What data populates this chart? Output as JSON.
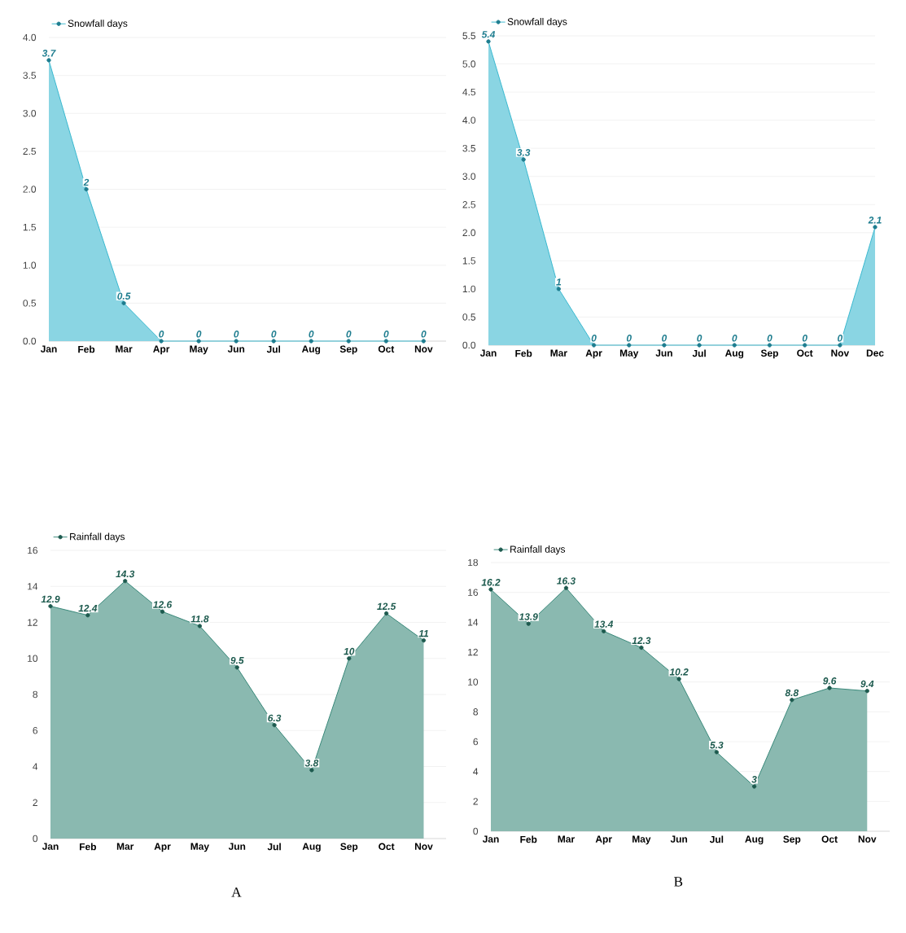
{
  "chart_data": [
    {
      "type": "area",
      "categories": [
        "Jan",
        "Feb",
        "Mar",
        "Apr",
        "May",
        "Jun",
        "Jul",
        "Aug",
        "Sep",
        "Oct",
        "Nov"
      ],
      "series": [
        {
          "name": "Snowfall days",
          "color": "#2bb3cc",
          "values": [
            3.7,
            2,
            0.5,
            0,
            0,
            0,
            0,
            0,
            0,
            0,
            0
          ]
        }
      ],
      "ylim": [
        0,
        4
      ],
      "yticks": [
        {
          "value": 0,
          "label": "0.0"
        },
        {
          "value": 0.5,
          "label": "0.5"
        },
        {
          "value": 1,
          "label": "1.0"
        },
        {
          "value": 1.5,
          "label": "1.5"
        },
        {
          "value": 2,
          "label": "2.0"
        },
        {
          "value": 2.5,
          "label": "2.5"
        },
        {
          "value": 3,
          "label": "3.0"
        },
        {
          "value": 3.5,
          "label": "3.5"
        },
        {
          "value": 4,
          "label": "4.0"
        }
      ],
      "grid": "y",
      "legend": "top left",
      "marker": "circle",
      "data_labels": true
    },
    {
      "type": "area",
      "categories": [
        "Jan",
        "Feb",
        "Mar",
        "Apr",
        "May",
        "Jun",
        "Jul",
        "Aug",
        "Sep",
        "Oct",
        "Nov",
        "Dec"
      ],
      "series": [
        {
          "name": "Snowfall days",
          "color": "#2bb3cc",
          "values": [
            5.4,
            3.3,
            1,
            0,
            0,
            0,
            0,
            0,
            0,
            0,
            0,
            2.1
          ]
        }
      ],
      "ylim": [
        0,
        5.5
      ],
      "yticks": [
        {
          "value": 0,
          "label": "0.0"
        },
        {
          "value": 0.5,
          "label": "0.5"
        },
        {
          "value": 1,
          "label": "1.0"
        },
        {
          "value": 1.5,
          "label": "1.5"
        },
        {
          "value": 2,
          "label": "2.0"
        },
        {
          "value": 2.5,
          "label": "2.5"
        },
        {
          "value": 3,
          "label": "3.0"
        },
        {
          "value": 3.5,
          "label": "3.5"
        },
        {
          "value": 4,
          "label": "4.0"
        },
        {
          "value": 4.5,
          "label": "4.5"
        },
        {
          "value": 5,
          "label": "5.0"
        },
        {
          "value": 5.5,
          "label": "5.5"
        }
      ],
      "grid": "y",
      "legend": "top left",
      "marker": "circle",
      "data_labels": true
    },
    {
      "type": "area",
      "categories": [
        "Jan",
        "Feb",
        "Mar",
        "Apr",
        "May",
        "Jun",
        "Jul",
        "Aug",
        "Sep",
        "Oct",
        "Nov"
      ],
      "series": [
        {
          "name": "Rainfall days",
          "color": "#2a8070",
          "values": [
            12.9,
            12.4,
            14.3,
            12.6,
            11.8,
            9.5,
            6.3,
            3.8,
            10,
            12.5,
            11
          ]
        }
      ],
      "ylim": [
        0,
        16
      ],
      "yticks": [
        0,
        2,
        4,
        6,
        8,
        10,
        12,
        14,
        16
      ],
      "grid": "y",
      "legend": "top left",
      "marker": "circle",
      "data_labels": true,
      "annotations": [
        "A"
      ]
    },
    {
      "type": "area",
      "categories": [
        "Jan",
        "Feb",
        "Mar",
        "Apr",
        "May",
        "Jun",
        "Jul",
        "Aug",
        "Sep",
        "Oct",
        "Nov"
      ],
      "series": [
        {
          "name": "Rainfall days",
          "color": "#2a8070",
          "values": [
            16.2,
            13.9,
            16.3,
            13.4,
            12.3,
            10.2,
            5.3,
            3,
            8.8,
            9.6,
            9.4
          ]
        }
      ],
      "ylim": [
        0,
        18
      ],
      "yticks": [
        0,
        2,
        4,
        6,
        8,
        10,
        12,
        14,
        16,
        18
      ],
      "grid": "y",
      "legend": "top left",
      "marker": "circle",
      "data_labels": true,
      "annotations": [
        "B"
      ]
    }
  ]
}
